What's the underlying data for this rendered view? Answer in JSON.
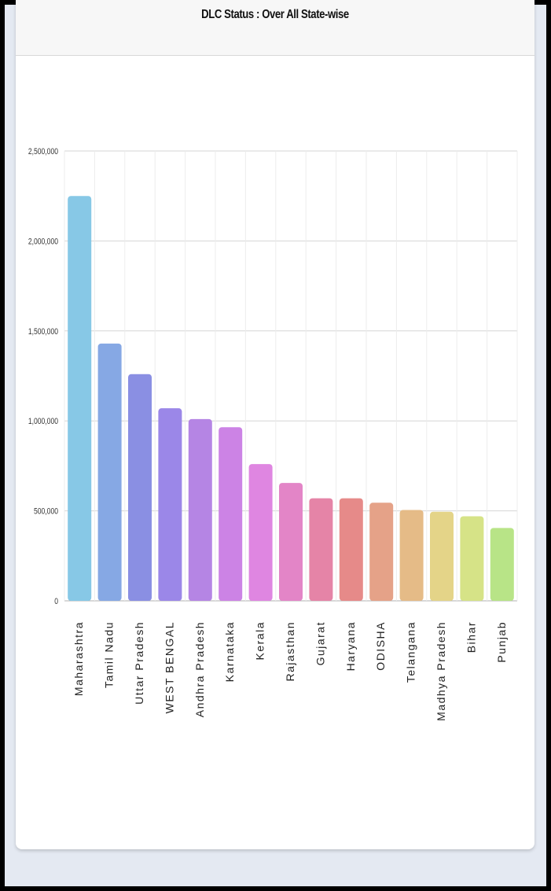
{
  "card": {
    "title": "DLC Status : Over All State-wise"
  },
  "chart_data": {
    "type": "bar",
    "title": "DLC Status : Over All State-wise",
    "xlabel": "",
    "ylabel": "",
    "ylim": [
      0,
      2500000
    ],
    "yticks": [
      0,
      500000,
      1000000,
      1500000,
      2000000,
      2500000
    ],
    "ytick_labels": [
      "0",
      "500,000",
      "1,000,000",
      "1,500,000",
      "2,000,000",
      "2,500,000"
    ],
    "grid": true,
    "categories": [
      "Maharashtra",
      "Tamil Nadu",
      "Uttar Pradesh",
      "WEST BENGAL",
      "Andhra Pradesh",
      "Karnataka",
      "Kerala",
      "Rajasthan",
      "Gujarat",
      "Haryana",
      "ODISHA",
      "Telangana",
      "Madhya Pradesh",
      "Bihar",
      "Punjab"
    ],
    "values": [
      2250000,
      1430000,
      1260000,
      1070000,
      1010000,
      965000,
      760000,
      655000,
      570000,
      570000,
      545000,
      505000,
      495000,
      470000,
      405000
    ],
    "colors": [
      "#87c8e6",
      "#86a8e4",
      "#8a8fe3",
      "#9b87e8",
      "#b585e4",
      "#cc83e5",
      "#df86e1",
      "#e385c7",
      "#e584a7",
      "#e68a89",
      "#e5a288",
      "#e5bb87",
      "#e4d488",
      "#d6e387",
      "#b8e487"
    ]
  }
}
